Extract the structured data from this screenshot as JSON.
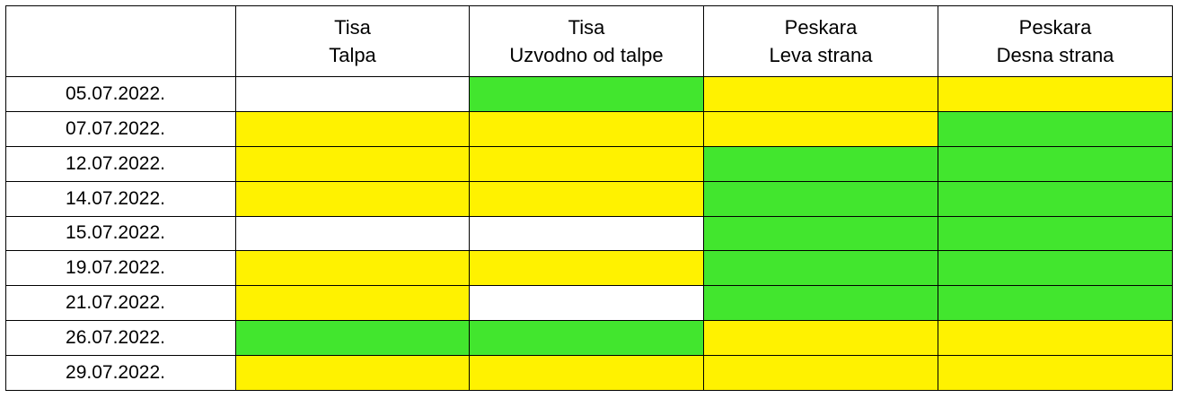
{
  "colors": {
    "Y": "#fff200",
    "G": "#42e62e",
    "W": "#ffffff"
  },
  "chart_data": {
    "type": "table",
    "columns": [
      {
        "line1": "",
        "line2": ""
      },
      {
        "line1": "Tisa",
        "line2": "Talpa"
      },
      {
        "line1": "Tisa",
        "line2": "Uzvodno od talpe"
      },
      {
        "line1": "Peskara",
        "line2": "Leva strana"
      },
      {
        "line1": "Peskara",
        "line2": "Desna strana"
      }
    ],
    "rows": [
      {
        "date": "05.07.2022.",
        "cells": [
          "W",
          "G",
          "Y",
          "Y"
        ]
      },
      {
        "date": "07.07.2022.",
        "cells": [
          "Y",
          "Y",
          "Y",
          "G"
        ]
      },
      {
        "date": "12.07.2022.",
        "cells": [
          "Y",
          "Y",
          "G",
          "G"
        ]
      },
      {
        "date": "14.07.2022.",
        "cells": [
          "Y",
          "Y",
          "G",
          "G"
        ]
      },
      {
        "date": "15.07.2022.",
        "cells": [
          "W",
          "W",
          "G",
          "G"
        ]
      },
      {
        "date": "19.07.2022.",
        "cells": [
          "Y",
          "Y",
          "G",
          "G"
        ]
      },
      {
        "date": "21.07.2022.",
        "cells": [
          "Y",
          "W",
          "G",
          "G"
        ]
      },
      {
        "date": "26.07.2022.",
        "cells": [
          "G",
          "G",
          "Y",
          "Y"
        ]
      },
      {
        "date": "29.07.2022.",
        "cells": [
          "Y",
          "Y",
          "Y",
          "Y"
        ]
      }
    ]
  }
}
